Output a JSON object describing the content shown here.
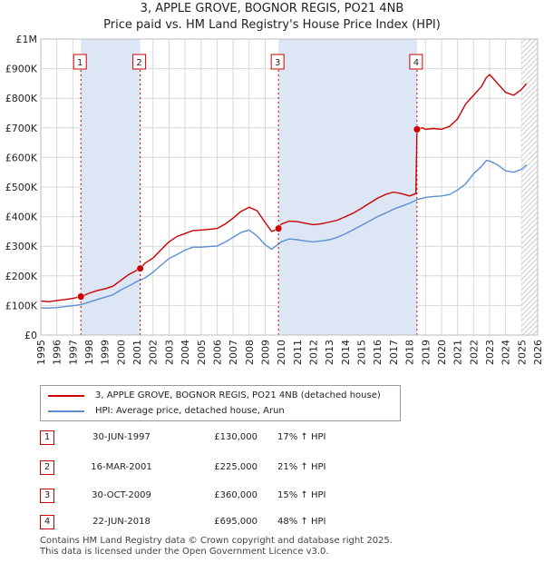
{
  "title_line1": "3, APPLE GROVE, BOGNOR REGIS, PO21 4NB",
  "title_line2": "Price paid vs. HM Land Registry's House Price Index (HPI)",
  "colors": {
    "property": "#cc0000",
    "hpi": "#5b8fd0",
    "shade": "#dde6f5",
    "marker": "#cc0000"
  },
  "legend": {
    "property": "3, APPLE GROVE, BOGNOR REGIS, PO21 4NB (detached house)",
    "hpi": "HPI: Average price, detached house, Arun"
  },
  "sales": [
    {
      "num": "1",
      "date": "30-JUN-1997",
      "price": "£130,000",
      "hpi": "17% ↑ HPI"
    },
    {
      "num": "2",
      "date": "16-MAR-2001",
      "price": "£225,000",
      "hpi": "21% ↑ HPI"
    },
    {
      "num": "3",
      "date": "30-OCT-2009",
      "price": "£360,000",
      "hpi": "15% ↑ HPI"
    },
    {
      "num": "4",
      "date": "22-JUN-2018",
      "price": "£695,000",
      "hpi": "48% ↑ HPI"
    }
  ],
  "footer_line1": "Contains HM Land Registry data © Crown copyright and database right 2025.",
  "footer_line2": "This data is licensed under the Open Government Licence v3.0.",
  "chart_data": {
    "type": "line",
    "title": "3, APPLE GROVE, BOGNOR REGIS, PO21 4NB — Price paid vs. HM Land Registry's House Price Index (HPI)",
    "xlim": [
      1995,
      2026
    ],
    "ylim": [
      0,
      1000000
    ],
    "x_ticks": [
      "1995",
      "1996",
      "1997",
      "1998",
      "1999",
      "2000",
      "2001",
      "2002",
      "2003",
      "2004",
      "2005",
      "2006",
      "2007",
      "2008",
      "2009",
      "2010",
      "2011",
      "2012",
      "2013",
      "2014",
      "2015",
      "2016",
      "2017",
      "2018",
      "2019",
      "2020",
      "2021",
      "2022",
      "2023",
      "2024",
      "2025",
      "2026"
    ],
    "y_ticks": [
      {
        "value": 0,
        "label": "£0"
      },
      {
        "value": 100000,
        "label": "£100K"
      },
      {
        "value": 200000,
        "label": "£200K"
      },
      {
        "value": 300000,
        "label": "£300K"
      },
      {
        "value": 400000,
        "label": "£400K"
      },
      {
        "value": 500000,
        "label": "£500K"
      },
      {
        "value": 600000,
        "label": "£600K"
      },
      {
        "value": 700000,
        "label": "£700K"
      },
      {
        "value": 800000,
        "label": "£800K"
      },
      {
        "value": 900000,
        "label": "£900K"
      },
      {
        "value": 1000000,
        "label": "£1M"
      }
    ],
    "shaded_ranges": [
      [
        1997.5,
        2001.2
      ],
      [
        2009.83,
        2018.47
      ]
    ],
    "hatched_from": 2025.0,
    "sale_markers": [
      {
        "label": "1",
        "x": 1997.5,
        "y": 130000
      },
      {
        "label": "2",
        "x": 2001.2,
        "y": 225000
      },
      {
        "label": "3",
        "x": 2009.83,
        "y": 360000
      },
      {
        "label": "4",
        "x": 2018.47,
        "y": 695000
      }
    ],
    "series": [
      {
        "name": "3, APPLE GROVE, BOGNOR REGIS, PO21 4NB (detached house)",
        "x": [
          1995,
          1995.5,
          1996,
          1996.5,
          1997,
          1997.5,
          1998,
          1998.5,
          1999,
          1999.5,
          2000,
          2000.5,
          2001.2,
          2001.5,
          2002,
          2002.5,
          2003,
          2003.5,
          2004,
          2004.5,
          2005,
          2005.5,
          2006,
          2006.5,
          2007,
          2007.5,
          2008,
          2008.5,
          2009,
          2009.4,
          2009.83,
          2010,
          2010.5,
          2011,
          2011.5,
          2012,
          2012.5,
          2013,
          2013.5,
          2014,
          2014.5,
          2015,
          2015.5,
          2016,
          2016.5,
          2017,
          2017.5,
          2018,
          2018.4,
          2018.47,
          2018.8,
          2019,
          2019.5,
          2020,
          2020.5,
          2021,
          2021.5,
          2022,
          2022.5,
          2022.8,
          2023,
          2023.5,
          2024,
          2024.5,
          2025,
          2025.3
        ],
        "values": [
          115000,
          113000,
          117000,
          120000,
          124000,
          130000,
          141000,
          150000,
          156000,
          165000,
          185000,
          205000,
          225000,
          243000,
          260000,
          288000,
          315000,
          333000,
          343000,
          353000,
          355000,
          357000,
          360000,
          375000,
          395000,
          418000,
          432000,
          420000,
          380000,
          350000,
          360000,
          375000,
          385000,
          383000,
          378000,
          373000,
          376000,
          382000,
          388000,
          400000,
          412000,
          428000,
          445000,
          462000,
          475000,
          483000,
          478000,
          470000,
          478000,
          695000,
          700000,
          695000,
          698000,
          695000,
          705000,
          730000,
          780000,
          810000,
          840000,
          870000,
          880000,
          850000,
          820000,
          810000,
          830000,
          850000
        ]
      },
      {
        "name": "HPI: Average price, detached house, Arun",
        "x": [
          1995,
          1995.5,
          1996,
          1996.5,
          1997,
          1997.5,
          1998,
          1998.5,
          1999,
          1999.5,
          2000,
          2000.5,
          2001,
          2001.5,
          2002,
          2002.5,
          2003,
          2003.5,
          2004,
          2004.5,
          2005,
          2005.5,
          2006,
          2006.5,
          2007,
          2007.5,
          2008,
          2008.5,
          2009,
          2009.4,
          2010,
          2010.5,
          2011,
          2011.5,
          2012,
          2012.5,
          2013,
          2013.5,
          2014,
          2014.5,
          2015,
          2015.5,
          2016,
          2016.5,
          2017,
          2017.5,
          2018,
          2018.5,
          2019,
          2019.5,
          2020,
          2020.5,
          2021,
          2021.5,
          2022,
          2022.5,
          2022.8,
          2023,
          2023.5,
          2024,
          2024.5,
          2025,
          2025.3
        ],
        "values": [
          92000,
          91000,
          93000,
          96000,
          99000,
          103000,
          111000,
          120000,
          128000,
          136000,
          153000,
          166000,
          181000,
          193000,
          212000,
          236000,
          259000,
          272000,
          287000,
          297000,
          297000,
          299000,
          301000,
          314000,
          330000,
          347000,
          355000,
          335000,
          305000,
          290000,
          315000,
          325000,
          322000,
          318000,
          315000,
          318000,
          322000,
          330000,
          342000,
          356000,
          370000,
          385000,
          400000,
          412000,
          425000,
          435000,
          445000,
          458000,
          465000,
          468000,
          470000,
          475000,
          490000,
          510000,
          545000,
          570000,
          590000,
          588000,
          575000,
          555000,
          550000,
          560000,
          575000
        ]
      }
    ]
  }
}
